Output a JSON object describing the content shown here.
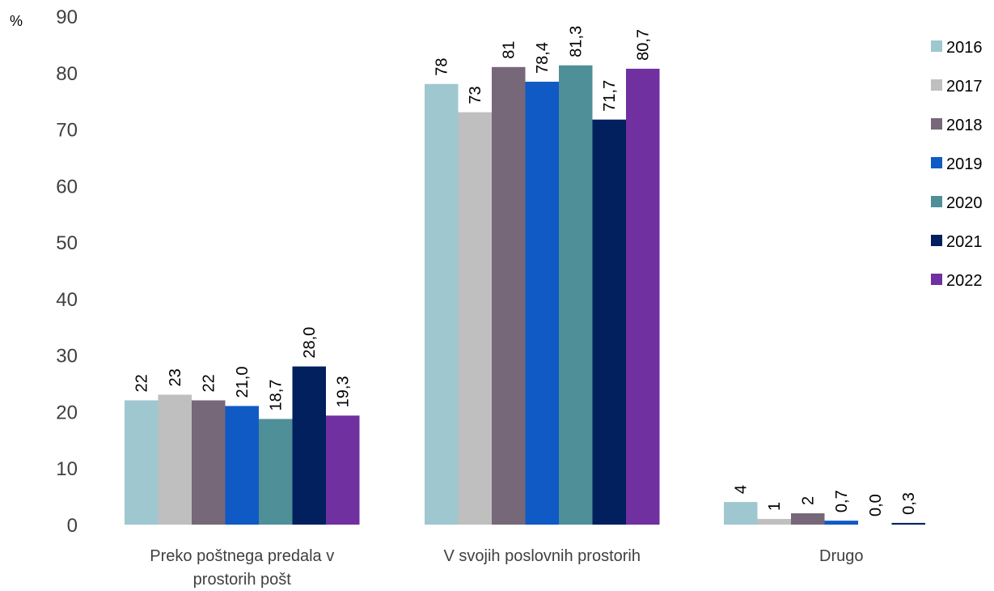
{
  "chart_data": {
    "type": "bar",
    "unit_label": "%",
    "categories": [
      [
        "Preko poštnega predala v",
        "prostorih pošt"
      ],
      [
        "V svojih poslovnih prostorih"
      ],
      [
        "Drugo"
      ]
    ],
    "ylim": [
      0,
      90
    ],
    "yticks": [
      0,
      10,
      20,
      30,
      40,
      50,
      60,
      70,
      80,
      90
    ],
    "legend_position": "right",
    "grid": false,
    "series": [
      {
        "name": "2016",
        "color": "#9fc7cf",
        "values": [
          22,
          78,
          4
        ],
        "labels": [
          "22",
          "78",
          "4"
        ]
      },
      {
        "name": "2017",
        "color": "#bfbfbf",
        "values": [
          23,
          73,
          1
        ],
        "labels": [
          "23",
          "73",
          "1"
        ]
      },
      {
        "name": "2018",
        "color": "#766878",
        "values": [
          22,
          81,
          2
        ],
        "labels": [
          "22",
          "81",
          "2"
        ]
      },
      {
        "name": "2019",
        "color": "#105ac5",
        "values": [
          21.0,
          78.4,
          0.7
        ],
        "labels": [
          "21,0",
          "78,4",
          "0,7"
        ]
      },
      {
        "name": "2020",
        "color": "#4e8f98",
        "values": [
          18.7,
          81.3,
          0.0
        ],
        "labels": [
          "18,7",
          "81,3",
          "0,0"
        ]
      },
      {
        "name": "2021",
        "color": "#02205e",
        "values": [
          28.0,
          71.7,
          0.3
        ],
        "labels": [
          "28,0",
          "71,7",
          "0,3"
        ]
      },
      {
        "name": "2022",
        "color": "#7030a0",
        "values": [
          19.3,
          80.7,
          null
        ],
        "labels": [
          "19,3",
          "80,7",
          ""
        ]
      }
    ]
  }
}
